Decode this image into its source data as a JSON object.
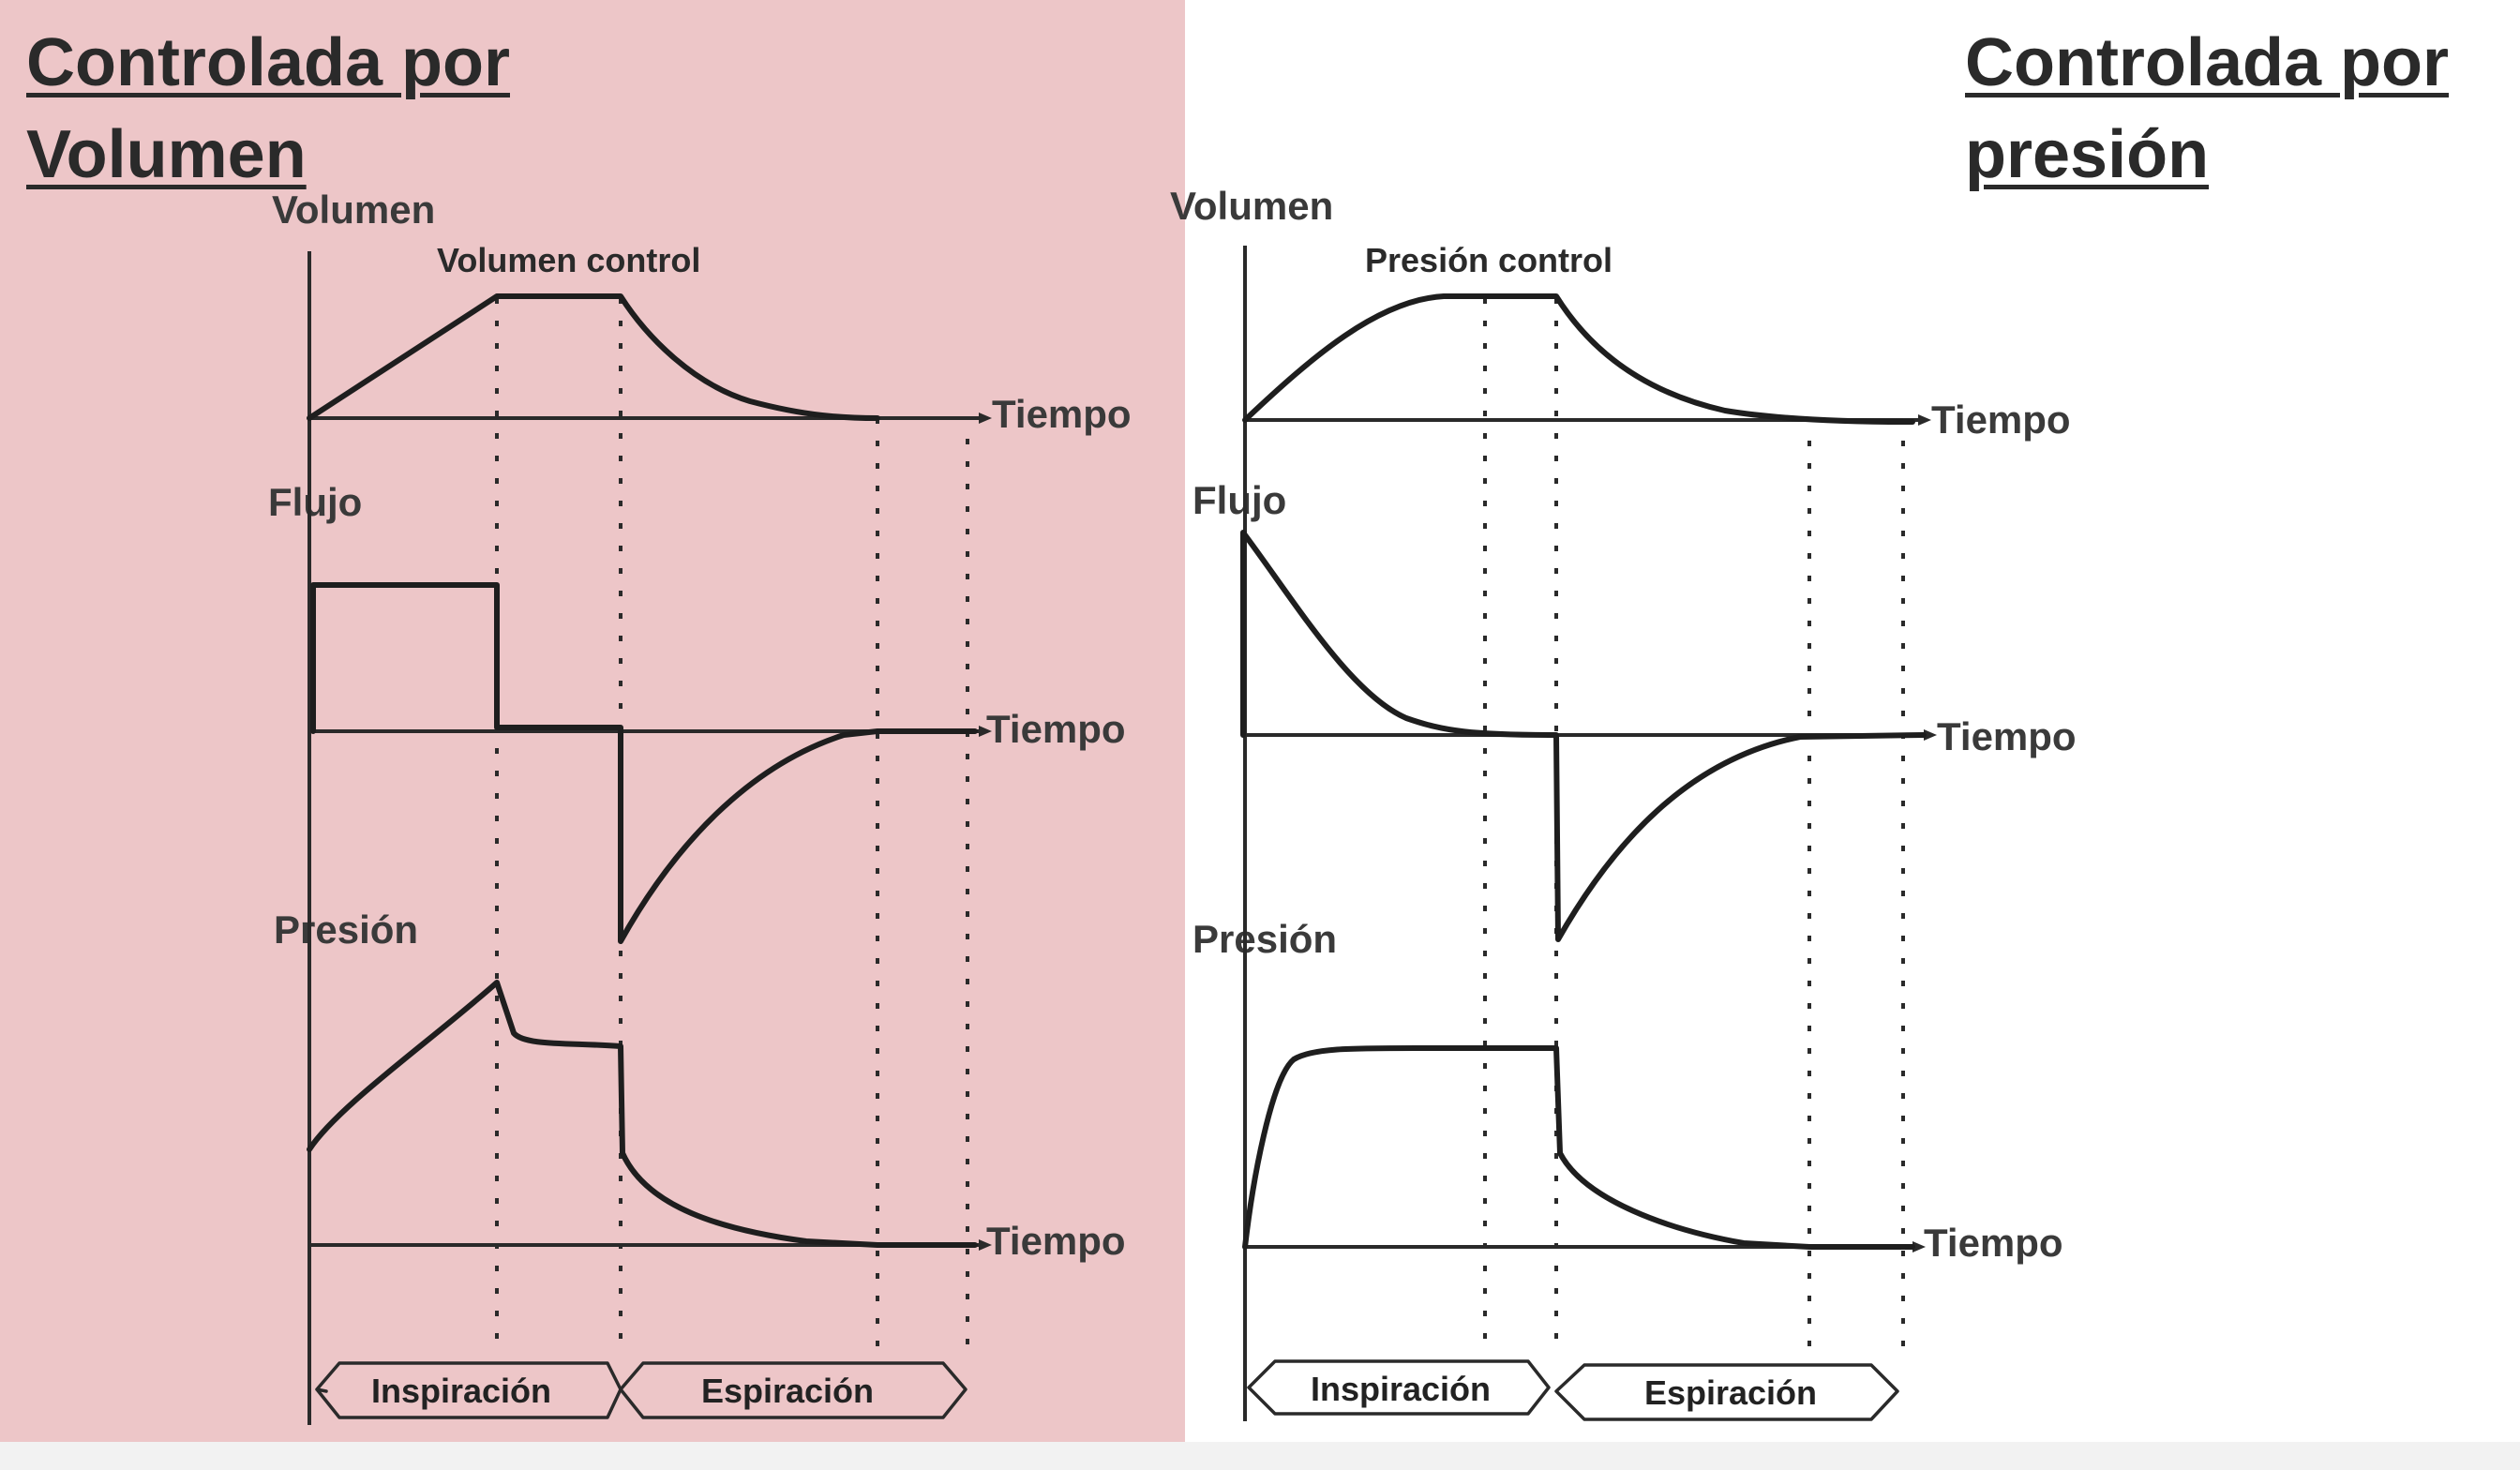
{
  "colors": {
    "left_background": "#edc6c8",
    "right_background": "#ffffff",
    "ink": "#1e1e1e"
  },
  "left": {
    "heading_line1": "Controlada por",
    "heading_line2": "Volumen",
    "volume_label": "Volumen",
    "volume_subtitle": "Volumen control",
    "flow_label": "Flujo",
    "pressure_label": "Presión",
    "time_label": "Tiempo",
    "inspiration_label": "Inspiración",
    "expiration_label": "Espiración"
  },
  "right": {
    "heading_line1": "Controlada por",
    "heading_line2": "presión",
    "volume_label": "Volumen",
    "volume_subtitle": "Presión control",
    "flow_label": "Flujo",
    "pressure_label": "Presión",
    "time_label": "Tiempo",
    "inspiration_label": "Inspiración",
    "expiration_label": "Espiración"
  }
}
